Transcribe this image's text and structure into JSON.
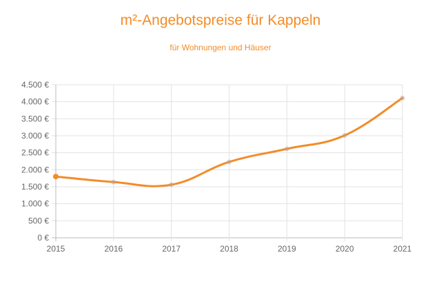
{
  "chart_data": {
    "type": "line",
    "title": "m²-Angebotspreise für Kappeln",
    "subtitle": "für Wohnungen und Häuser",
    "xlabel": "",
    "ylabel": "",
    "x": [
      "2015",
      "2016",
      "2017",
      "2018",
      "2019",
      "2020",
      "2021"
    ],
    "series": [
      {
        "name": "m²-Angebotspreis",
        "values": [
          1800,
          1640,
          1560,
          2230,
          2615,
          3010,
          4110
        ]
      }
    ],
    "ylim": [
      0,
      4500
    ],
    "yticks": [
      0,
      500,
      1000,
      1500,
      2000,
      2500,
      3000,
      3500,
      4000,
      4500
    ],
    "ytick_labels": [
      "0 €",
      "500 €",
      "1.000 €",
      "1.500 €",
      "2.000 €",
      "2.500 €",
      "3.000 €",
      "3.500 €",
      "4.000 €",
      "4.500 €"
    ],
    "grid": true,
    "legend": "none",
    "color": "#f28c28"
  }
}
